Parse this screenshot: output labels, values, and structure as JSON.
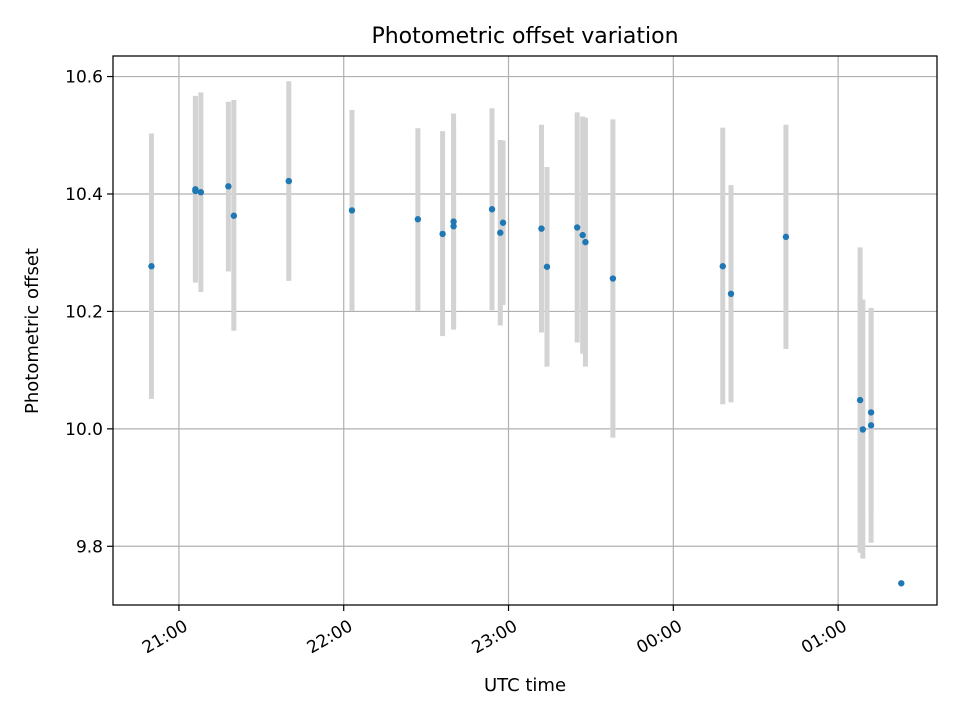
{
  "chart_data": {
    "type": "scatter",
    "title": "Photometric offset variation",
    "xlabel": "UTC time",
    "ylabel": "Photometric offset",
    "xlim": [
      "20:36",
      "01:36"
    ],
    "ylim": [
      9.7,
      10.635
    ],
    "x_ticks": [
      "21:00",
      "22:00",
      "23:00",
      "00:00",
      "01:00"
    ],
    "y_ticks": [
      "9.8",
      "10.0",
      "10.2",
      "10.4",
      "10.6"
    ],
    "grid": true,
    "marker_color": "#1f77b4",
    "errorbar_color": "#d3d3d3",
    "points": [
      {
        "t": "20:50",
        "y": 10.277,
        "lo": 10.051,
        "hi": 10.503
      },
      {
        "t": "21:06",
        "y": 10.405,
        "lo": 10.253,
        "hi": 10.557
      },
      {
        "t": "21:06",
        "y": 10.408,
        "lo": 10.249,
        "hi": 10.567
      },
      {
        "t": "21:08",
        "y": 10.403,
        "lo": 10.233,
        "hi": 10.573
      },
      {
        "t": "21:18",
        "y": 10.413,
        "lo": 10.268,
        "hi": 10.557
      },
      {
        "t": "21:20",
        "y": 10.363,
        "lo": 10.167,
        "hi": 10.56
      },
      {
        "t": "21:40",
        "y": 10.422,
        "lo": 10.252,
        "hi": 10.592
      },
      {
        "t": "22:03",
        "y": 10.372,
        "lo": 10.201,
        "hi": 10.543
      },
      {
        "t": "22:27",
        "y": 10.357,
        "lo": 10.201,
        "hi": 10.512
      },
      {
        "t": "22:36",
        "y": 10.332,
        "lo": 10.158,
        "hi": 10.507
      },
      {
        "t": "22:40",
        "y": 10.353,
        "lo": 10.169,
        "hi": 10.537
      },
      {
        "t": "22:40",
        "y": 10.345,
        "lo": 10.171,
        "hi": 10.519
      },
      {
        "t": "22:54",
        "y": 10.374,
        "lo": 10.202,
        "hi": 10.546
      },
      {
        "t": "22:57",
        "y": 10.334,
        "lo": 10.176,
        "hi": 10.492
      },
      {
        "t": "22:58",
        "y": 10.351,
        "lo": 10.211,
        "hi": 10.491
      },
      {
        "t": "23:12",
        "y": 10.341,
        "lo": 10.164,
        "hi": 10.518
      },
      {
        "t": "23:14",
        "y": 10.276,
        "lo": 10.106,
        "hi": 10.446
      },
      {
        "t": "23:25",
        "y": 10.343,
        "lo": 10.147,
        "hi": 10.539
      },
      {
        "t": "23:27",
        "y": 10.33,
        "lo": 10.128,
        "hi": 10.532
      },
      {
        "t": "23:28",
        "y": 10.318,
        "lo": 10.106,
        "hi": 10.53
      },
      {
        "t": "23:38",
        "y": 10.256,
        "lo": 9.985,
        "hi": 10.527
      },
      {
        "t": "00:18",
        "y": 10.277,
        "lo": 10.042,
        "hi": 10.513
      },
      {
        "t": "00:21",
        "y": 10.23,
        "lo": 10.045,
        "hi": 10.415
      },
      {
        "t": "00:41",
        "y": 10.327,
        "lo": 10.136,
        "hi": 10.518
      },
      {
        "t": "01:08",
        "y": 10.049,
        "lo": 9.789,
        "hi": 10.309
      },
      {
        "t": "01:09",
        "y": 9.999,
        "lo": 9.779,
        "hi": 10.22
      },
      {
        "t": "01:12",
        "y": 10.028,
        "lo": 9.858,
        "hi": 10.199
      },
      {
        "t": "01:12",
        "y": 10.006,
        "lo": 9.806,
        "hi": 10.206
      },
      {
        "t": "01:23",
        "y": 9.737,
        "lo": 9.737,
        "hi": 9.737
      }
    ]
  }
}
